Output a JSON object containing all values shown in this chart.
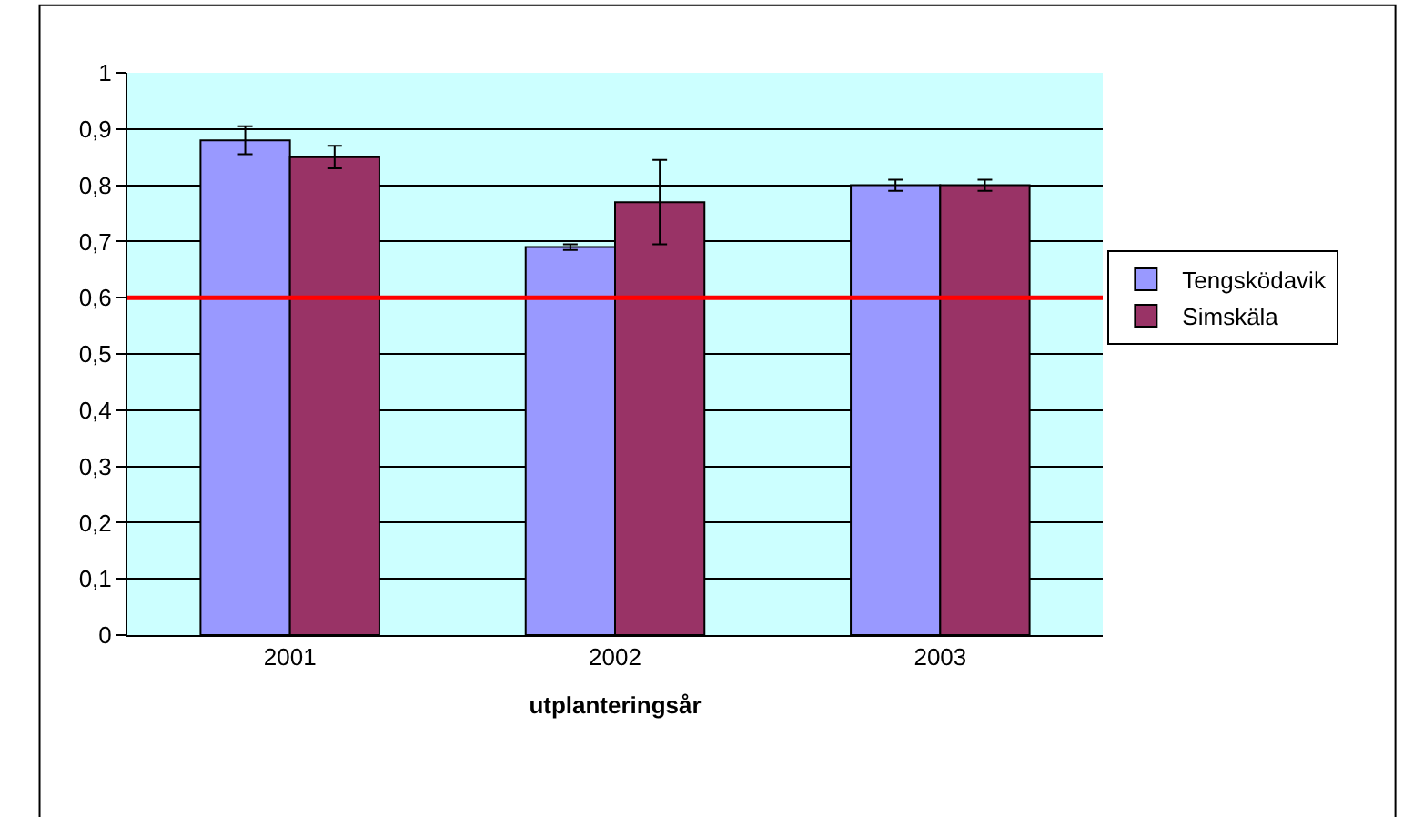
{
  "chart_data": {
    "type": "bar",
    "xlabel": "utplanteringsår",
    "categories": [
      "2001",
      "2002",
      "2003"
    ],
    "series": [
      {
        "name": "Tengsködavik",
        "color": "#9999ff",
        "values": [
          0.88,
          0.69,
          0.8
        ],
        "errors": [
          0.025,
          0.005,
          0.01
        ]
      },
      {
        "name": "Simskäla",
        "color": "#993366",
        "values": [
          0.85,
          0.77,
          0.8
        ],
        "errors": [
          0.02,
          0.075,
          0.01
        ]
      }
    ],
    "ylim": [
      0,
      1
    ],
    "yticks": [
      0,
      {
        "value": 0.1,
        "label": "0,1"
      },
      {
        "value": 0.2,
        "label": "0,2"
      },
      {
        "value": 0.3,
        "label": "0,3"
      },
      {
        "value": 0.4,
        "label": "0,4"
      },
      {
        "value": 0.5,
        "label": "0,5"
      },
      {
        "value": 0.6,
        "label": "0,6"
      },
      {
        "value": 0.7,
        "label": "0,7"
      },
      {
        "value": 0.8,
        "label": "0,8"
      },
      {
        "value": 0.9,
        "label": "0,9"
      },
      1
    ],
    "ref_lines": [
      {
        "axis": "y",
        "value": 0.6,
        "color": "#ff0000"
      }
    ],
    "grid": "y",
    "legend": "right"
  }
}
